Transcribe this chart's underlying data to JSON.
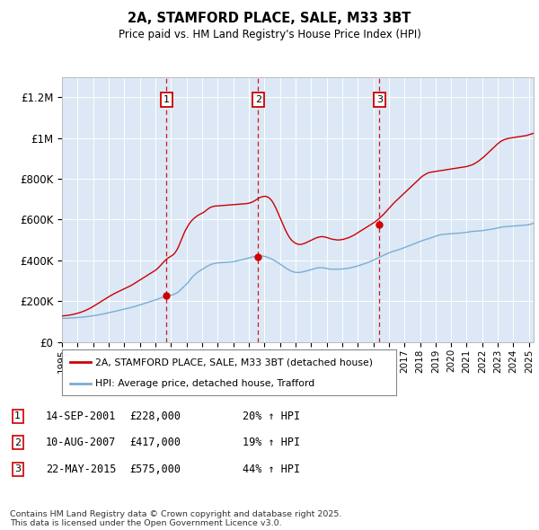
{
  "title": "2A, STAMFORD PLACE, SALE, M33 3BT",
  "subtitle": "Price paid vs. HM Land Registry's House Price Index (HPI)",
  "ylim": [
    0,
    1300000
  ],
  "yticks": [
    0,
    200000,
    400000,
    600000,
    800000,
    1000000,
    1200000
  ],
  "ytick_labels": [
    "£0",
    "£200K",
    "£400K",
    "£600K",
    "£800K",
    "£1M",
    "£1.2M"
  ],
  "plot_bg_color": "#dce8f5",
  "red_line_color": "#cc0000",
  "blue_line_color": "#7aadd4",
  "legend_items": [
    "2A, STAMFORD PLACE, SALE, M33 3BT (detached house)",
    "HPI: Average price, detached house, Trafford"
  ],
  "sale_points": [
    {
      "label": "1",
      "date_str": "14-SEP-2001",
      "year": 2001.71,
      "price": 228000,
      "hpi_pct": "20% ↑ HPI"
    },
    {
      "label": "2",
      "date_str": "10-AUG-2007",
      "year": 2007.61,
      "price": 417000,
      "hpi_pct": "19% ↑ HPI"
    },
    {
      "label": "3",
      "date_str": "22-MAY-2015",
      "year": 2015.39,
      "price": 575000,
      "hpi_pct": "44% ↑ HPI"
    }
  ],
  "footer": "Contains HM Land Registry data © Crown copyright and database right 2025.\nThis data is licensed under the Open Government Licence v3.0.",
  "hpi_data_monthly": {
    "start_year": 1995.0,
    "step": 0.08333,
    "values": [
      115000,
      115200,
      115500,
      115800,
      116000,
      116300,
      116700,
      117000,
      117400,
      117800,
      118200,
      118600,
      119000,
      119500,
      120000,
      120600,
      121200,
      121900,
      122700,
      123500,
      124300,
      125200,
      126100,
      127000,
      127900,
      128900,
      130000,
      131100,
      132200,
      133400,
      134600,
      135900,
      137200,
      138500,
      139900,
      141300,
      142700,
      144100,
      145500,
      147000,
      148500,
      150000,
      151500,
      153000,
      154500,
      156000,
      157500,
      159000,
      160500,
      162000,
      163500,
      165000,
      166600,
      168200,
      169900,
      171600,
      173300,
      175100,
      177000,
      179000,
      181000,
      183000,
      185000,
      187000,
      189000,
      191000,
      193000,
      195000,
      197000,
      199000,
      201000,
      203000,
      205000,
      207500,
      210000,
      212500,
      215000,
      217500,
      219500,
      221500,
      223000,
      224500,
      226000,
      227500,
      228500,
      230000,
      232000,
      235000,
      238000,
      242000,
      247000,
      253000,
      259000,
      265000,
      271000,
      277000,
      283000,
      290000,
      298000,
      306000,
      314000,
      321000,
      327000,
      333000,
      338000,
      343000,
      347000,
      351000,
      355000,
      359000,
      363000,
      367000,
      371000,
      374000,
      377000,
      380000,
      382000,
      384000,
      385000,
      386000,
      387000,
      387500,
      388000,
      388500,
      389000,
      389500,
      390000,
      390500,
      391000,
      391500,
      392000,
      392500,
      393000,
      394000,
      395500,
      397000,
      398500,
      400000,
      401500,
      403000,
      404500,
      406000,
      407500,
      409500,
      411500,
      413500,
      415500,
      417000,
      418000,
      419500,
      420500,
      421500,
      422000,
      422000,
      421500,
      420500,
      419500,
      418000,
      416000,
      414000,
      411500,
      408500,
      405500,
      402000,
      398500,
      394500,
      390500,
      386500,
      382500,
      378000,
      373500,
      369000,
      364500,
      360500,
      356500,
      352500,
      349000,
      346000,
      344000,
      342500,
      341000,
      340500,
      340000,
      340500,
      341500,
      342500,
      344000,
      345500,
      347000,
      348500,
      350000,
      352000,
      354000,
      356000,
      358000,
      360000,
      361500,
      362500,
      363500,
      364000,
      364000,
      363500,
      362500,
      361500,
      360000,
      358500,
      357500,
      357000,
      356500,
      356500,
      356500,
      356500,
      356500,
      356500,
      356500,
      357000,
      357500,
      358000,
      358500,
      359500,
      360500,
      361500,
      362500,
      364000,
      365500,
      367000,
      368500,
      370500,
      372500,
      374500,
      376500,
      378500,
      380500,
      382500,
      384500,
      387000,
      389500,
      392000,
      395000,
      398000,
      401000,
      404000,
      407000,
      410000,
      413000,
      416000,
      419000,
      422000,
      425000,
      428000,
      431000,
      434000,
      436500,
      439000,
      441000,
      443000,
      445000,
      447500,
      449500,
      451500,
      453500,
      455500,
      457500,
      460000,
      462500,
      465000,
      467500,
      470000,
      472500,
      475000,
      477500,
      480000,
      482500,
      485000,
      487500,
      490000,
      492500,
      495000,
      497000,
      499000,
      501000,
      503000,
      505000,
      507000,
      509000,
      511000,
      513000,
      515500,
      518000,
      520500,
      522500,
      524000,
      525500,
      526500,
      527500,
      528000,
      528500,
      529000,
      529500,
      530000,
      530500,
      531000,
      531500,
      532000,
      532500,
      533000,
      533500,
      534000,
      534500,
      535000,
      535500,
      536500,
      537500,
      538500,
      539500,
      540500,
      541500,
      542000,
      542500,
      543000,
      543500,
      544000,
      544500,
      545000,
      545500,
      546500,
      547500,
      548500,
      549500,
      550500,
      551500,
      552500,
      553500,
      554500,
      556000,
      557500,
      559000,
      560500,
      562000,
      563000,
      564000,
      564500,
      565000,
      565500,
      566000,
      566500,
      567000,
      567500,
      568000,
      568500,
      569000,
      569500,
      570000,
      570500,
      571000,
      571500,
      572000,
      572500,
      573000,
      574000,
      575000,
      576500,
      578500,
      580500,
      583000,
      585500,
      588000,
      591000,
      594000,
      597500,
      601000,
      605000,
      609000,
      613000,
      617000,
      621000,
      625000,
      629000,
      633000,
      637000,
      641000,
      644000,
      647000,
      650000,
      652500,
      655000,
      657000,
      659000,
      661000,
      662000,
      663000,
      664000,
      665000,
      666000,
      667000,
      668000,
      669000,
      670000,
      671000,
      672000,
      673000,
      673500,
      674000,
      675000,
      675500,
      676000,
      676500,
      677000,
      677500,
      678000,
      678500,
      679000,
      679500,
      680000,
      680500,
      681000
    ]
  },
  "price_line_monthly": {
    "start_year": 1995.0,
    "step": 0.08333,
    "values": [
      127000,
      127500,
      128000,
      128800,
      129600,
      130500,
      131500,
      132700,
      134000,
      135400,
      136900,
      138500,
      140200,
      142000,
      144000,
      146200,
      148500,
      151000,
      153700,
      156600,
      159600,
      162800,
      166200,
      169800,
      173500,
      177300,
      181200,
      185200,
      189200,
      193200,
      197200,
      201200,
      205200,
      209200,
      213200,
      217000,
      221000,
      224800,
      228500,
      232000,
      235500,
      238800,
      242000,
      245000,
      248000,
      251000,
      254000,
      257000,
      260000,
      263000,
      266000,
      269000,
      272000,
      275500,
      279000,
      283000,
      287000,
      291000,
      295000,
      299000,
      303000,
      307000,
      311000,
      315000,
      319000,
      323000,
      327000,
      331000,
      335000,
      339000,
      343000,
      347000,
      351000,
      356000,
      362000,
      368000,
      375000,
      382000,
      389000,
      396000,
      402000,
      407000,
      412000,
      416000,
      420000,
      424000,
      429000,
      436000,
      445000,
      456000,
      469000,
      484000,
      500000,
      516000,
      531000,
      545000,
      557000,
      568000,
      578000,
      587000,
      595000,
      601000,
      607000,
      612000,
      617000,
      621000,
      625000,
      628000,
      631000,
      635000,
      639000,
      644000,
      649000,
      654000,
      658000,
      661000,
      663000,
      665000,
      666000,
      666500,
      667000,
      667500,
      668000,
      668500,
      669000,
      669500,
      670000,
      670500,
      671000,
      671500,
      672000,
      672500,
      673000,
      673500,
      674000,
      674500,
      675000,
      675500,
      676000,
      676500,
      677000,
      677500,
      678000,
      679000,
      680000,
      682000,
      684000,
      687000,
      690000,
      694000,
      698000,
      702000,
      706000,
      709000,
      711000,
      713000,
      714000,
      714000,
      712000,
      709000,
      704000,
      698000,
      690000,
      680000,
      668000,
      655000,
      641000,
      626000,
      611000,
      596000,
      581000,
      566000,
      552000,
      539000,
      527000,
      516000,
      507000,
      499000,
      493000,
      488000,
      484000,
      481000,
      479000,
      478000,
      478000,
      479000,
      481000,
      483000,
      486000,
      489000,
      492000,
      495000,
      498000,
      501000,
      504000,
      507000,
      510000,
      512000,
      514000,
      515000,
      516000,
      516000,
      515000,
      514000,
      512000,
      510000,
      508000,
      506000,
      504000,
      503000,
      502000,
      501000,
      500000,
      500000,
      500000,
      501000,
      502000,
      503000,
      505000,
      507000,
      509000,
      511000,
      514000,
      517000,
      520000,
      523000,
      527000,
      531000,
      535000,
      539000,
      543000,
      547000,
      551000,
      555000,
      559000,
      563000,
      567000,
      571000,
      575000,
      579000,
      583000,
      587000,
      592000,
      597000,
      602000,
      608000,
      614000,
      620000,
      626000,
      633000,
      640000,
      647000,
      654000,
      661000,
      668000,
      675000,
      682000,
      688000,
      694000,
      700000,
      706000,
      712000,
      718000,
      724000,
      730000,
      736000,
      742000,
      748000,
      754000,
      760000,
      766000,
      772000,
      778000,
      784000,
      790000,
      796000,
      802000,
      808000,
      813000,
      817000,
      821000,
      825000,
      828000,
      830000,
      832000,
      833000,
      834000,
      835000,
      836000,
      837000,
      838000,
      839000,
      840000,
      841000,
      842000,
      843000,
      844000,
      845000,
      846000,
      847000,
      848000,
      849000,
      850000,
      851000,
      852000,
      853000,
      854000,
      855000,
      856000,
      857000,
      858000,
      859000,
      860000,
      862000,
      864000,
      866000,
      868000,
      871000,
      874000,
      878000,
      882000,
      886000,
      891000,
      896000,
      901000,
      906000,
      912000,
      918000,
      924000,
      930000,
      936000,
      942000,
      948000,
      954000,
      960000,
      966000,
      972000,
      977000,
      982000,
      986000,
      989000,
      992000,
      994000,
      996000,
      998000,
      999000,
      1000000,
      1001000,
      1002000,
      1003000,
      1004000,
      1005000,
      1006000,
      1007000,
      1008000,
      1009000,
      1010000,
      1011000,
      1012000,
      1014000,
      1016000,
      1018000,
      1020000,
      1022000,
      1025000,
      1028000,
      1031000,
      1034000,
      1037000,
      1040000,
      1043000,
      1046000,
      1049000,
      1052000,
      1055000,
      1058000,
      1060000,
      1061000,
      1062000,
      1063000,
      1064000,
      1065000,
      1066000,
      1067000
    ]
  }
}
